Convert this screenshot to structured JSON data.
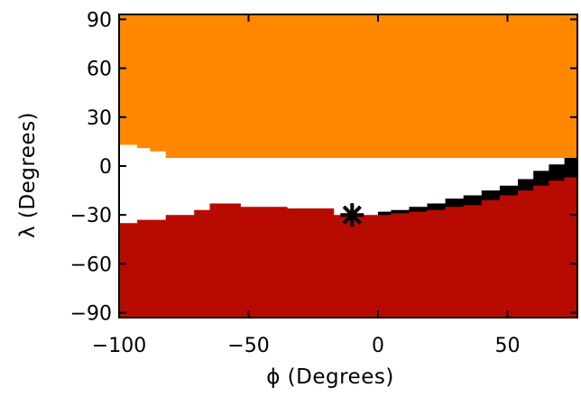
{
  "chart_data": {
    "type": "heatmap",
    "title": "",
    "xlabel": "ϕ (Degrees)",
    "ylabel": "λ (Degrees)",
    "xlim": [
      -100,
      77
    ],
    "ylim": [
      -93,
      93
    ],
    "xticks": [
      -100,
      -50,
      0,
      50
    ],
    "yticks": [
      90,
      60,
      30,
      0,
      -30,
      -60,
      -90
    ],
    "grid": false,
    "legend": "none",
    "regions": [
      {
        "id": "orange",
        "color": "#ff8800",
        "polygon": [
          [
            -100,
            93
          ],
          [
            77,
            93
          ],
          [
            77,
            5
          ],
          [
            -100,
            5
          ]
        ]
      },
      {
        "id": "white",
        "color": "#ffffff",
        "polygon": [
          [
            -100,
            13
          ],
          [
            -93,
            13
          ],
          [
            -93,
            11
          ],
          [
            -88,
            11
          ],
          [
            -88,
            9
          ],
          [
            -82,
            9
          ],
          [
            -82,
            5
          ],
          [
            -77,
            5
          ],
          [
            -77,
            1
          ],
          [
            -71,
            1
          ],
          [
            -71,
            -3
          ],
          [
            -65,
            -3
          ],
          [
            -65,
            -7
          ],
          [
            -59,
            -7
          ],
          [
            -59,
            -10
          ],
          [
            -53,
            -10
          ],
          [
            -53,
            -14
          ],
          [
            -47,
            -14
          ],
          [
            -47,
            -17
          ],
          [
            -41,
            -17
          ],
          [
            -41,
            -19
          ],
          [
            -35,
            -19
          ],
          [
            -35,
            -22
          ],
          [
            -29,
            -22
          ],
          [
            -29,
            -24
          ],
          [
            -23,
            -24
          ],
          [
            -23,
            -26
          ],
          [
            -17,
            -26
          ],
          [
            -17,
            -32
          ],
          [
            -100,
            -32
          ]
        ]
      },
      {
        "id": "black",
        "color": "#000000",
        "polygon": [
          [
            0,
            -28
          ],
          [
            5,
            -28
          ],
          [
            5,
            -27
          ],
          [
            12,
            -27
          ],
          [
            12,
            -25
          ],
          [
            19,
            -25
          ],
          [
            19,
            -23
          ],
          [
            26,
            -23
          ],
          [
            26,
            -20
          ],
          [
            33,
            -20
          ],
          [
            33,
            -18
          ],
          [
            40,
            -18
          ],
          [
            40,
            -15
          ],
          [
            47,
            -15
          ],
          [
            47,
            -12
          ],
          [
            54,
            -12
          ],
          [
            54,
            -8
          ],
          [
            60,
            -8
          ],
          [
            60,
            -3
          ],
          [
            66,
            -3
          ],
          [
            66,
            1
          ],
          [
            72,
            1
          ],
          [
            72,
            5
          ],
          [
            77,
            5
          ],
          [
            77,
            -17
          ],
          [
            0,
            -32
          ]
        ]
      },
      {
        "id": "red",
        "color": "#b80b00",
        "polygon": [
          [
            -100,
            -35
          ],
          [
            -93,
            -35
          ],
          [
            -93,
            -33
          ],
          [
            -82,
            -33
          ],
          [
            -82,
            -30
          ],
          [
            -71,
            -30
          ],
          [
            -71,
            -27
          ],
          [
            -65,
            -27
          ],
          [
            -65,
            -23
          ],
          [
            -53,
            -23
          ],
          [
            -53,
            -25
          ],
          [
            -35,
            -25
          ],
          [
            -35,
            -26
          ],
          [
            -17,
            -26
          ],
          [
            -17,
            -30
          ],
          [
            0,
            -30
          ],
          [
            5,
            -30
          ],
          [
            5,
            -29
          ],
          [
            12,
            -29
          ],
          [
            12,
            -28
          ],
          [
            19,
            -28
          ],
          [
            19,
            -27
          ],
          [
            26,
            -27
          ],
          [
            26,
            -25
          ],
          [
            33,
            -25
          ],
          [
            33,
            -24
          ],
          [
            40,
            -24
          ],
          [
            40,
            -21
          ],
          [
            47,
            -21
          ],
          [
            47,
            -18
          ],
          [
            54,
            -18
          ],
          [
            54,
            -15
          ],
          [
            60,
            -15
          ],
          [
            60,
            -12
          ],
          [
            66,
            -12
          ],
          [
            66,
            -9
          ],
          [
            72,
            -9
          ],
          [
            72,
            -7
          ],
          [
            77,
            -7
          ],
          [
            77,
            -93
          ],
          [
            -100,
            -93
          ]
        ]
      }
    ],
    "marker": {
      "symbol": "asterisk",
      "x": -10,
      "y": -30,
      "color": "#000000"
    }
  }
}
